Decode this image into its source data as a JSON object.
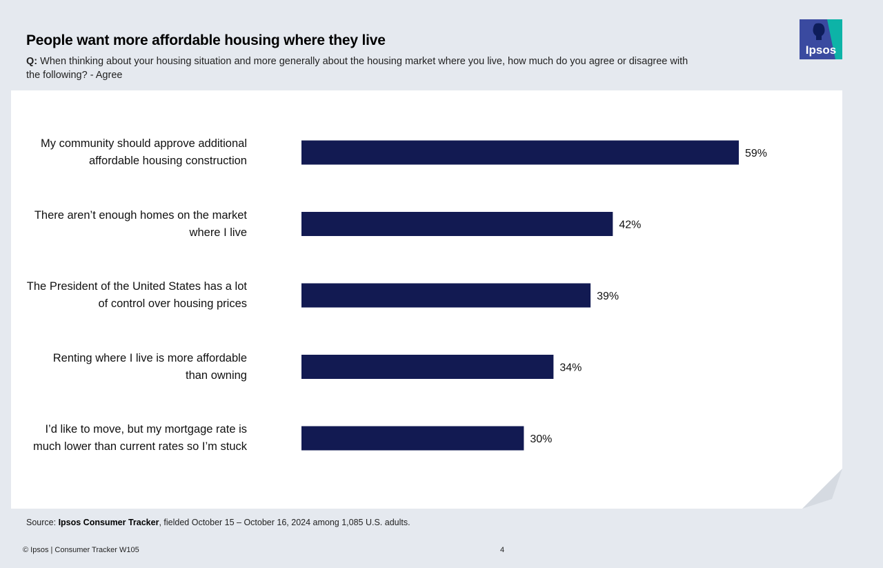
{
  "header": {
    "title": "People want more affordable housing where they live",
    "question_label": "Q:",
    "question_text": "When thinking about your housing situation and more generally about the housing market where you live, how much do you agree or disagree with the following? - Agree"
  },
  "logo": {
    "text": "Ipsos",
    "colors": [
      "#3a4aa0",
      "#0db3a7"
    ]
  },
  "chart_data": {
    "type": "bar",
    "orientation": "horizontal",
    "categories": [
      [
        "My community should approve additional",
        "affordable housing construction"
      ],
      [
        "There aren’t enough homes on the market",
        "where I live"
      ],
      [
        "The President of the United States has a lot",
        "of control over housing prices"
      ],
      [
        "Renting where I live is more affordable",
        "than owning"
      ],
      [
        "I’d like to move, but my mortgage rate is",
        "much lower than current rates so I’m stuck"
      ]
    ],
    "values": [
      59,
      42,
      39,
      34,
      30
    ],
    "value_labels": [
      "59%",
      "42%",
      "39%",
      "34%",
      "30%"
    ],
    "xlim": [
      0,
      59
    ],
    "bar_color": "#121a52",
    "grid": false,
    "legend": "none"
  },
  "footer": {
    "source_prefix": "Source: ",
    "source_bold": "Ipsos Consumer Tracker",
    "source_rest": ", fielded October 15 – October 16, 2024 among 1,085 U.S. adults.",
    "copyright": "© Ipsos | Consumer Tracker W105",
    "page_number": "4"
  }
}
